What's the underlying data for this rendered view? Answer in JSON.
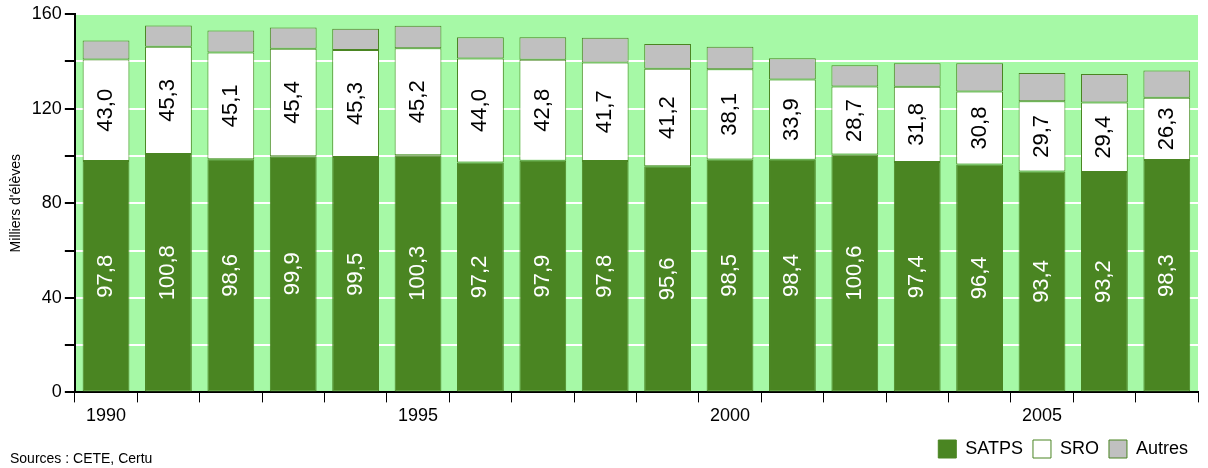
{
  "chart_data": {
    "type": "bar",
    "stacked": true,
    "ylabel": "Milliers d'élèves",
    "categories": [
      "1990",
      null,
      null,
      null,
      null,
      "1995",
      null,
      null,
      null,
      null,
      "2000",
      null,
      null,
      null,
      null,
      "2005",
      null,
      null
    ],
    "series": [
      {
        "name": "SATPS",
        "color": "#4a8522",
        "values": [
          97.8,
          100.8,
          98.6,
          99.9,
          99.5,
          100.3,
          97.2,
          97.9,
          97.8,
          95.6,
          98.5,
          98.4,
          100.6,
          97.4,
          96.4,
          93.4,
          93.2,
          98.3
        ],
        "value_labels": [
          "97,8",
          "100,8",
          "98,6",
          "99,9",
          "99,5",
          "100,3",
          "97,2",
          "97,9",
          "97,8",
          "95,6",
          "98,5",
          "98,4",
          "100,6",
          "97,4",
          "96,4",
          "93,4",
          "93,2",
          "98,3"
        ]
      },
      {
        "name": "SRO",
        "color": "#ffffff",
        "values": [
          43.0,
          45.3,
          45.1,
          45.4,
          45.3,
          45.2,
          44.0,
          42.8,
          41.7,
          41.2,
          38.1,
          33.9,
          28.7,
          31.8,
          30.8,
          29.7,
          29.4,
          26.3
        ],
        "value_labels": [
          "43,0",
          "45,3",
          "45,1",
          "45,4",
          "45,3",
          "45,2",
          "44,0",
          "42,8",
          "41,7",
          "41,2",
          "38,1",
          "33,9",
          "28,7",
          "31,8",
          "30,8",
          "29,7",
          "29,4",
          "26,3"
        ]
      },
      {
        "name": "Autres",
        "color": "#c0c0c0",
        "values": [
          8,
          9,
          9.3,
          9,
          9,
          9.5,
          9,
          9.5,
          10.5,
          10.5,
          9.5,
          9,
          9,
          10,
          12,
          12,
          12,
          11.5
        ]
      }
    ],
    "ylim": [
      0,
      160
    ],
    "yticks": [
      0,
      {
        "value": 20,
        "label": null
      },
      40,
      {
        "value": 60,
        "label": null
      },
      80,
      {
        "value": 100,
        "label": null
      },
      120,
      {
        "value": 140,
        "label": null
      },
      160
    ],
    "grid": "y",
    "legend": "bottom right",
    "annotations": [
      "Sources : CETE, Certu"
    ]
  }
}
